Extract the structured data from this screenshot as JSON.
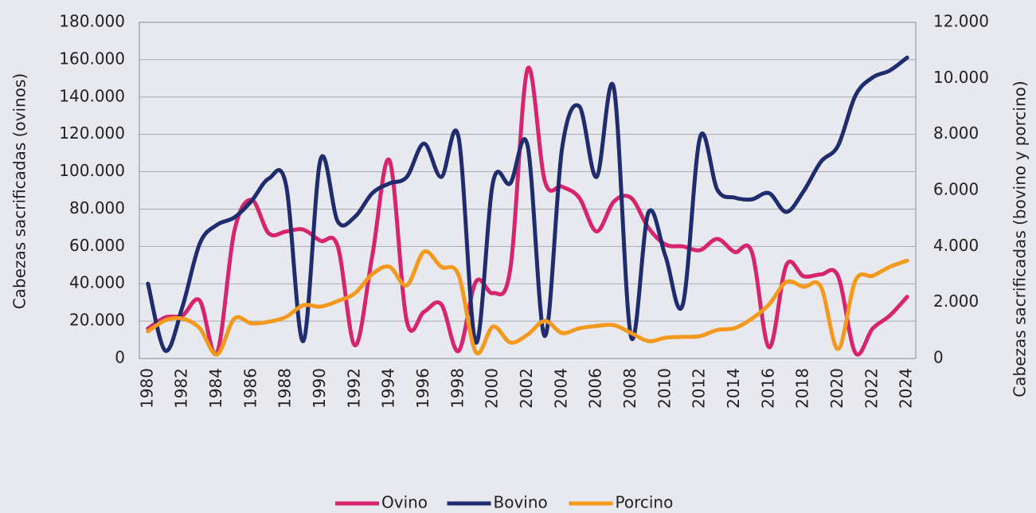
{
  "chart_data": {
    "type": "line",
    "categories": [
      1980,
      null,
      1982,
      null,
      1984,
      null,
      1986,
      null,
      1988,
      null,
      1990,
      null,
      1992,
      null,
      1994,
      null,
      1996,
      null,
      1998,
      null,
      2000,
      null,
      2002,
      null,
      2004,
      null,
      2006,
      null,
      2008,
      null,
      2010,
      null,
      2012,
      null,
      2014,
      null,
      2016,
      null,
      2018,
      null,
      2020,
      null,
      2022,
      null,
      2024
    ],
    "ylabel": "Cabezas sacrificadas (ovinos)",
    "y2label": "Cabezas sacrificadas (bovino y porcino)",
    "ylim": [
      0,
      180000
    ],
    "yticks": [
      0,
      {
        "value": 20000,
        "label": "20.000"
      },
      {
        "value": 40000,
        "label": "40.000"
      },
      {
        "value": 60000,
        "label": "60.000"
      },
      {
        "value": 80000,
        "label": "80.000"
      },
      {
        "value": 100000,
        "label": "100.000"
      },
      {
        "value": 120000,
        "label": "120.000"
      },
      {
        "value": 140000,
        "label": "140.000"
      },
      {
        "value": 160000,
        "label": "160.000"
      },
      {
        "value": 180000,
        "label": "180.000"
      }
    ],
    "y2lim": [
      0,
      12000
    ],
    "y2ticks": [
      0,
      {
        "value": 2000,
        "label": "2.000"
      },
      {
        "value": 4000,
        "label": "4.000"
      },
      {
        "value": 6000,
        "label": "6.000"
      },
      {
        "value": 8000,
        "label": "8.000"
      },
      {
        "value": 10000,
        "label": "10.000"
      },
      {
        "value": 12000,
        "label": "12.000"
      }
    ],
    "grid": true,
    "legend": "bottom",
    "series": [
      {
        "name": "Ovino",
        "color": "#d6246e",
        "values": [
          16000,
          22000,
          23000,
          31000,
          3000,
          68000,
          85000,
          67000,
          68000,
          69000,
          63000,
          60000,
          7000,
          55000,
          106000,
          20000,
          25000,
          29000,
          4000,
          41000,
          35000,
          48000,
          155000,
          95000,
          92000,
          86000,
          68000,
          84000,
          86000,
          70000,
          61000,
          60000,
          58000,
          64000,
          57000,
          57000,
          6000,
          50000,
          44000,
          45000,
          44000,
          3000,
          16000,
          23000,
          33000
        ]
      },
      {
        "name": "Bovino",
        "color": "#1f2d6e",
        "axis": "y2",
        "values": [
          2670,
          280,
          1850,
          4100,
          4770,
          5030,
          5620,
          6420,
          6200,
          620,
          7100,
          4890,
          5060,
          5900,
          6250,
          6480,
          7670,
          6480,
          7900,
          570,
          6300,
          6250,
          7600,
          800,
          7500,
          9000,
          6480,
          9660,
          770,
          5200,
          3640,
          1930,
          7900,
          6020,
          5740,
          5680,
          5900,
          5230,
          5970,
          7020,
          7600,
          9380,
          10030,
          10280,
          10740
        ]
      },
      {
        "name": "Porcino",
        "color": "#f39a1e",
        "axis": "y2",
        "values": [
          970,
          1360,
          1420,
          1080,
          140,
          1420,
          1250,
          1310,
          1480,
          1900,
          1850,
          2050,
          2330,
          3010,
          3270,
          2610,
          3810,
          3270,
          2980,
          230,
          1140,
          570,
          850,
          1340,
          910,
          1080,
          1160,
          1190,
          910,
          620,
          740,
          770,
          800,
          1020,
          1080,
          1420,
          1930,
          2730,
          2560,
          2560,
          340,
          2780,
          2950,
          3270,
          3490
        ]
      }
    ]
  }
}
